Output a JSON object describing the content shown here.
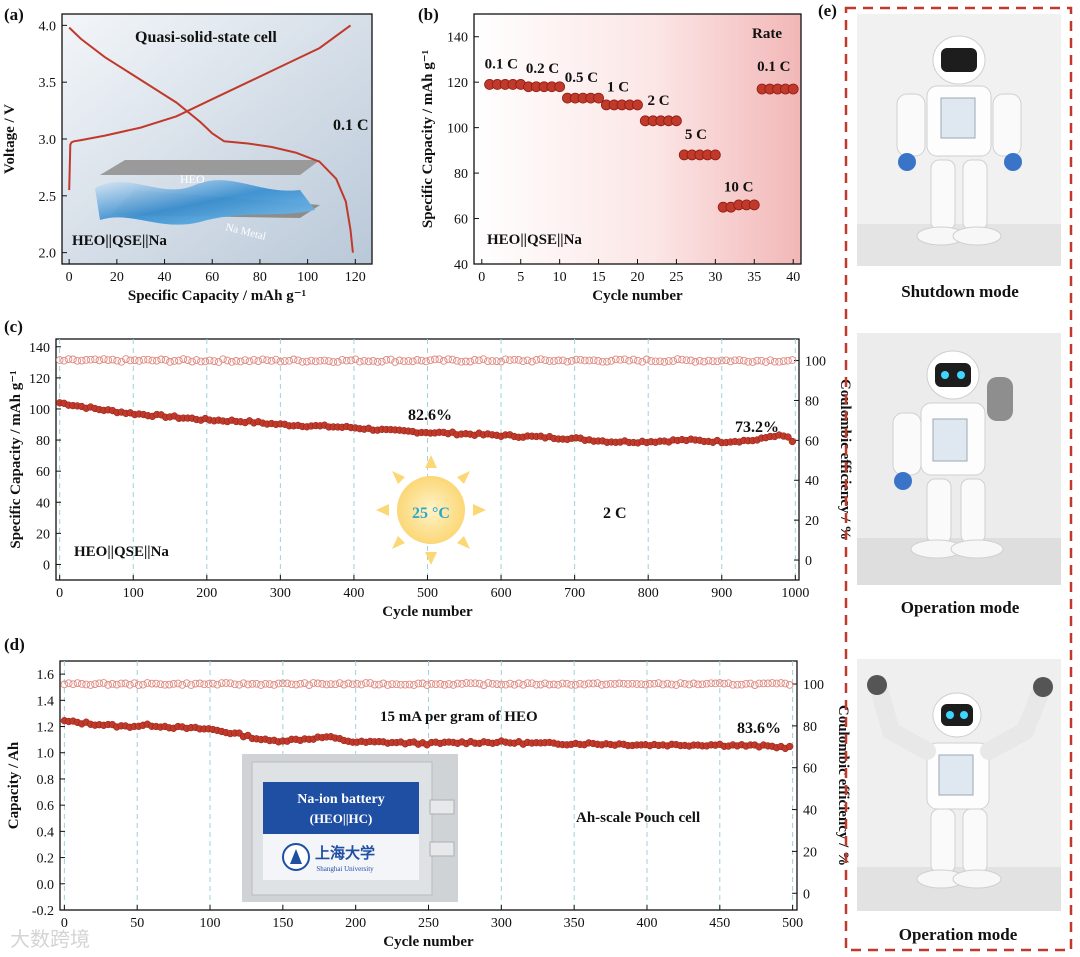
{
  "panels": {
    "a": {
      "label": "(a)",
      "title": "Quasi-solid-state cell",
      "rate": "0.1 C",
      "cell": "HEO||QSE||Na",
      "inset_top": "HEO",
      "inset_bottom": "Na Metal"
    },
    "b": {
      "label": "(b)",
      "rate_title": "Rate",
      "cell": "HEO||QSE||Na"
    },
    "c": {
      "label": "(c)",
      "retention_1": "82.6%",
      "retention_2": "73.2%",
      "rate": "2 C",
      "temperature": "25 °C",
      "cell": "HEO||QSE||Na"
    },
    "d": {
      "label": "(d)",
      "condition": "15 mA per gram of HEO",
      "retention": "83.6%",
      "cell": "Ah-scale Pouch cell",
      "pouch_label_1": "Na-ion battery",
      "pouch_label_2": "(HEO||HC)",
      "pouch_logo_text": "上海大学",
      "pouch_logo_sub": "Shanghai University"
    },
    "e": {
      "label": "(e)",
      "modes": [
        "Shutdown mode",
        "Operation mode",
        "Operation mode"
      ]
    }
  },
  "watermark": "大数跨境",
  "colors": {
    "curve": "#c0392b",
    "dashed_border": "#c0392b",
    "grid": "#9ad3d8"
  },
  "chart_data": [
    {
      "id": "a",
      "type": "line",
      "xlabel": "Specific Capacity / mAh g⁻¹",
      "ylabel": "Voltage / V",
      "xlim": [
        -3,
        127
      ],
      "ylim": [
        1.9,
        4.1
      ],
      "xticks": [
        0,
        20,
        40,
        60,
        80,
        100,
        120
      ],
      "yticks": [
        2.0,
        2.5,
        3.0,
        3.5,
        4.0
      ],
      "series": [
        {
          "name": "charge",
          "x": [
            0,
            0.5,
            1,
            2,
            5,
            15,
            30,
            45,
            60,
            75,
            90,
            105,
            118
          ],
          "y": [
            2.55,
            2.95,
            2.97,
            2.98,
            2.99,
            3.03,
            3.1,
            3.2,
            3.35,
            3.5,
            3.65,
            3.8,
            4.0
          ]
        },
        {
          "name": "discharge",
          "x": [
            0,
            5,
            15,
            30,
            45,
            55,
            60,
            65,
            75,
            85,
            95,
            105,
            112,
            116,
            118,
            119
          ],
          "y": [
            3.98,
            3.88,
            3.72,
            3.52,
            3.32,
            3.15,
            3.05,
            2.98,
            2.96,
            2.93,
            2.88,
            2.8,
            2.65,
            2.45,
            2.2,
            2.0
          ]
        }
      ]
    },
    {
      "id": "b",
      "type": "scatter",
      "xlabel": "Cycle  number",
      "ylabel": "Specific Capacity / mAh g⁻¹",
      "xlim": [
        -1,
        41
      ],
      "ylim": [
        40,
        150
      ],
      "xticks": [
        0,
        5,
        10,
        15,
        20,
        25,
        30,
        35,
        40
      ],
      "yticks": [
        40,
        60,
        80,
        100,
        120,
        140
      ],
      "rate_labels": [
        {
          "text": "0.1 C",
          "x": 2.5,
          "y": 126
        },
        {
          "text": "0.2 C",
          "x": 7.8,
          "y": 124
        },
        {
          "text": "0.5 C",
          "x": 12.8,
          "y": 120
        },
        {
          "text": "1 C",
          "x": 17.5,
          "y": 116
        },
        {
          "text": "2 C",
          "x": 22.7,
          "y": 110
        },
        {
          "text": "5 C",
          "x": 27.5,
          "y": 95
        },
        {
          "text": "10 C",
          "x": 33,
          "y": 72
        },
        {
          "text": "0.1 C",
          "x": 37.5,
          "y": 125
        }
      ],
      "x": [
        1,
        2,
        3,
        4,
        5,
        6,
        7,
        8,
        9,
        10,
        11,
        12,
        13,
        14,
        15,
        16,
        17,
        18,
        19,
        20,
        21,
        22,
        23,
        24,
        25,
        26,
        27,
        28,
        29,
        30,
        31,
        32,
        33,
        34,
        35,
        36,
        37,
        38,
        39,
        40
      ],
      "values": [
        119,
        119,
        119,
        119,
        119,
        118,
        118,
        118,
        118,
        118,
        113,
        113,
        113,
        113,
        113,
        110,
        110,
        110,
        110,
        110,
        103,
        103,
        103,
        103,
        103,
        88,
        88,
        88,
        88,
        88,
        65,
        65,
        66,
        66,
        66,
        117,
        117,
        117,
        117,
        117
      ]
    },
    {
      "id": "c",
      "type": "scatter",
      "xlabel": "Cycle number",
      "ylabel": "Specific Capacity / mAh g⁻¹",
      "y2label": "Coulombic efficiency / %",
      "xlim": [
        -5,
        1005
      ],
      "ylim": [
        -10,
        145
      ],
      "y2lim": [
        -10,
        110.8
      ],
      "xticks": [
        0,
        100,
        200,
        300,
        400,
        500,
        600,
        700,
        800,
        900,
        1000
      ],
      "yticks": [
        0,
        20,
        40,
        60,
        80,
        100,
        120,
        140
      ],
      "y2ticks": [
        0,
        20,
        40,
        60,
        80,
        100
      ],
      "capacity": {
        "x": [
          0,
          50,
          100,
          150,
          200,
          250,
          300,
          350,
          400,
          450,
          500,
          550,
          600,
          650,
          700,
          750,
          800,
          850,
          900,
          950,
          970,
          990,
          1000
        ],
        "y": [
          104,
          100,
          97,
          95,
          93,
          92,
          90,
          89,
          88,
          86,
          85,
          84,
          83,
          82,
          81,
          79,
          79,
          80,
          79,
          80,
          83,
          82,
          76
        ]
      },
      "efficiency": {
        "value": 100
      }
    },
    {
      "id": "d",
      "type": "scatter",
      "xlabel": "Cycle number",
      "ylabel": "Capacity / Ah",
      "y2label": "Coulombic efficiency / %",
      "xlim": [
        -3,
        503
      ],
      "ylim": [
        -0.2,
        1.7
      ],
      "y2lim": [
        -8,
        111
      ],
      "xticks": [
        0,
        50,
        100,
        150,
        200,
        250,
        300,
        350,
        400,
        450,
        500
      ],
      "yticks": [
        -0.2,
        0.0,
        0.2,
        0.4,
        0.6,
        0.8,
        1.0,
        1.2,
        1.4,
        1.6
      ],
      "y2ticks": [
        0,
        20,
        40,
        60,
        80,
        100
      ],
      "capacity": {
        "x": [
          0,
          20,
          40,
          60,
          80,
          100,
          120,
          140,
          160,
          180,
          200,
          220,
          250,
          280,
          300,
          330,
          360,
          400,
          450,
          480,
          500
        ],
        "y": [
          1.24,
          1.22,
          1.2,
          1.21,
          1.19,
          1.18,
          1.14,
          1.09,
          1.1,
          1.12,
          1.08,
          1.08,
          1.07,
          1.08,
          1.08,
          1.07,
          1.07,
          1.06,
          1.06,
          1.05,
          1.04
        ]
      },
      "efficiency": {
        "value": 100
      }
    }
  ]
}
